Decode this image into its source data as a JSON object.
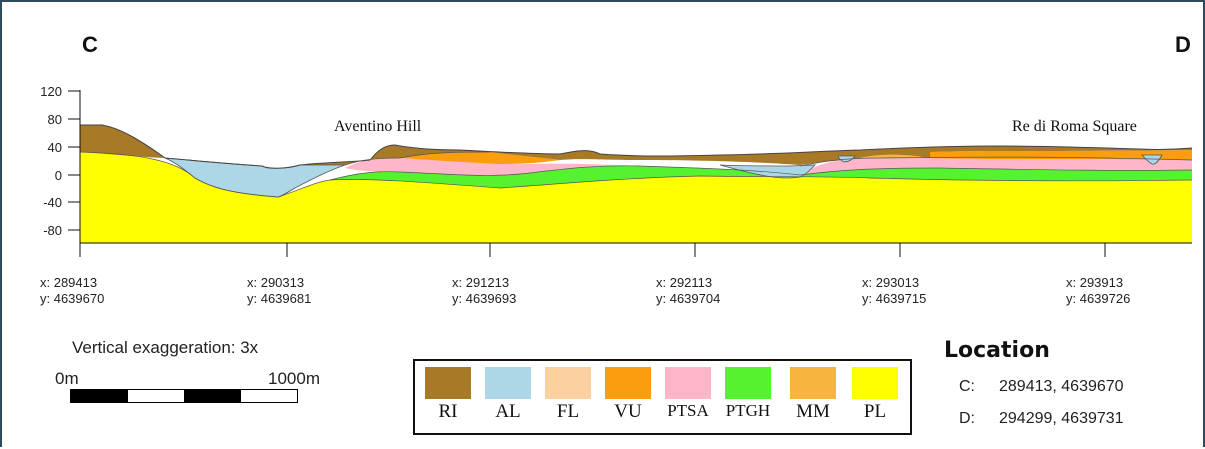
{
  "section": {
    "start_label": "C",
    "end_label": "D",
    "y_ticks": [
      "120",
      "80",
      "40",
      "0",
      "-40",
      "-80"
    ],
    "annotations": [
      "Aventino Hill",
      "Re di Roma Square"
    ],
    "stations": [
      {
        "x": "x: 289413",
        "y": "y: 4639670"
      },
      {
        "x": "x: 290313",
        "y": "y: 4639681"
      },
      {
        "x": "x: 291213",
        "y": "y: 4639693"
      },
      {
        "x": "x: 292113",
        "y": "y: 4639704"
      },
      {
        "x": "x: 293013",
        "y": "y: 4639715"
      },
      {
        "x": "x: 293913",
        "y": "y: 4639726"
      }
    ]
  },
  "scale": {
    "vertical_exaggeration": "Vertical exaggeration: 3x",
    "start": "0m",
    "end": "1000m"
  },
  "legend": [
    {
      "label": "RI",
      "color": "#a87a28"
    },
    {
      "label": "AL",
      "color": "#acd7e6"
    },
    {
      "label": "FL",
      "color": "#fdd0a0"
    },
    {
      "label": "VU",
      "color": "#fa9e10"
    },
    {
      "label": "PTSA",
      "color": "#feb6c8"
    },
    {
      "label": "PTGH",
      "color": "#55f230"
    },
    {
      "label": "MM",
      "color": "#f7b540"
    },
    {
      "label": "PL",
      "color": "#fefe00"
    }
  ],
  "location": {
    "title": "Location",
    "points": [
      {
        "key": "C:",
        "value": "289413, 4639670"
      },
      {
        "key": "D:",
        "value": "294299, 4639731"
      }
    ]
  }
}
